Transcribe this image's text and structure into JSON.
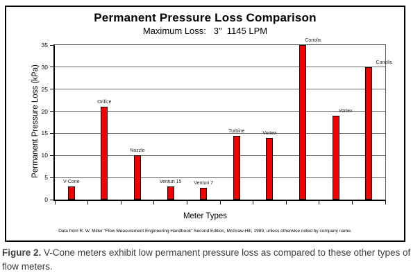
{
  "chart": {
    "title": "Permanent Pressure Loss Comparison",
    "subtitle": "Maximum Loss:   3\"  1145 LPM",
    "footnote": "Data from R. W. Miller \"Flow Measurement Engineering Handbook\" Second Edition, McGraw-Hill, 1989, unless otherwise noted by company name."
  },
  "chart_data": {
    "type": "bar",
    "title": "Permanent Pressure Loss Comparison",
    "subtitle": "Maximum Loss: 3\" 1145 LPM",
    "categories": [
      "V-Cone",
      "Orifice",
      "Nozzle",
      "Venturi 15",
      "Venturi 7",
      "Turbine",
      "Vortex",
      "Coriolis",
      "Vortex",
      "Coriolis"
    ],
    "values": [
      3,
      21,
      10,
      3,
      2.7,
      14.5,
      14,
      35,
      19,
      30
    ],
    "xlabel": "Meter Types",
    "ylabel": "Permanent Pressure Loss (kPa)",
    "ylim": [
      0,
      35
    ],
    "ytick_step": 5,
    "grid": "horizontal",
    "legend": "none",
    "bar_color": "#f20000",
    "bar_border_color": "#000000"
  },
  "caption": {
    "label": "Figure 2.",
    "text": "V-Cone meters exhibit low permanent pressure loss as compared to these other types of flow meters."
  }
}
